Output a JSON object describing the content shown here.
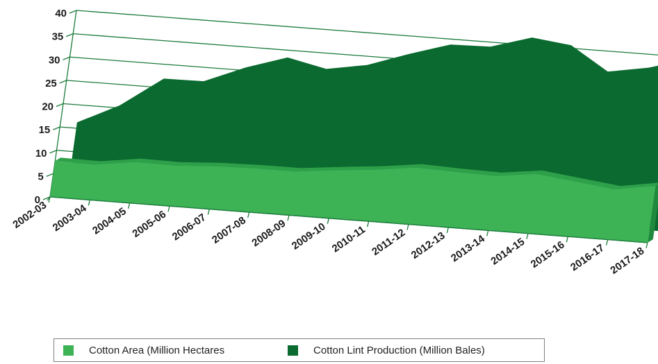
{
  "chart_data": {
    "type": "area",
    "categories": [
      "2002-03",
      "2003-04",
      "2004-05",
      "2005-06",
      "2006-07",
      "2007-08",
      "2008-09",
      "2009-10",
      "2010-11",
      "2011-12",
      "2012-13",
      "2013-14",
      "2014-15",
      "2015-16",
      "2016-17",
      "2017-18"
    ],
    "series": [
      {
        "name": "Cotton Area (Million Hectares",
        "color": "#3db356",
        "values": [
          7.7,
          7.6,
          8.8,
          8.7,
          9.2,
          9.4,
          9.4,
          10.3,
          11.1,
          12.2,
          11.9,
          11.7,
          12.8,
          11.8,
          10.8,
          12.2
        ]
      },
      {
        "name": "Cotton Lint Production (Million Bales)",
        "color": "#0a6a2f",
        "values": [
          13.6,
          17.9,
          24.3,
          24.4,
          28.0,
          30.8,
          29.0,
          30.5,
          33.5,
          36.2,
          36.4,
          39.0,
          38.0,
          33.0,
          34.5,
          37.0
        ]
      }
    ],
    "ylim": [
      0,
      40
    ],
    "yticks": [
      "0",
      "5",
      "10",
      "15",
      "20",
      "25",
      "30",
      "35",
      "40"
    ],
    "grid": true,
    "legend": "bottom",
    "style": "3d"
  }
}
